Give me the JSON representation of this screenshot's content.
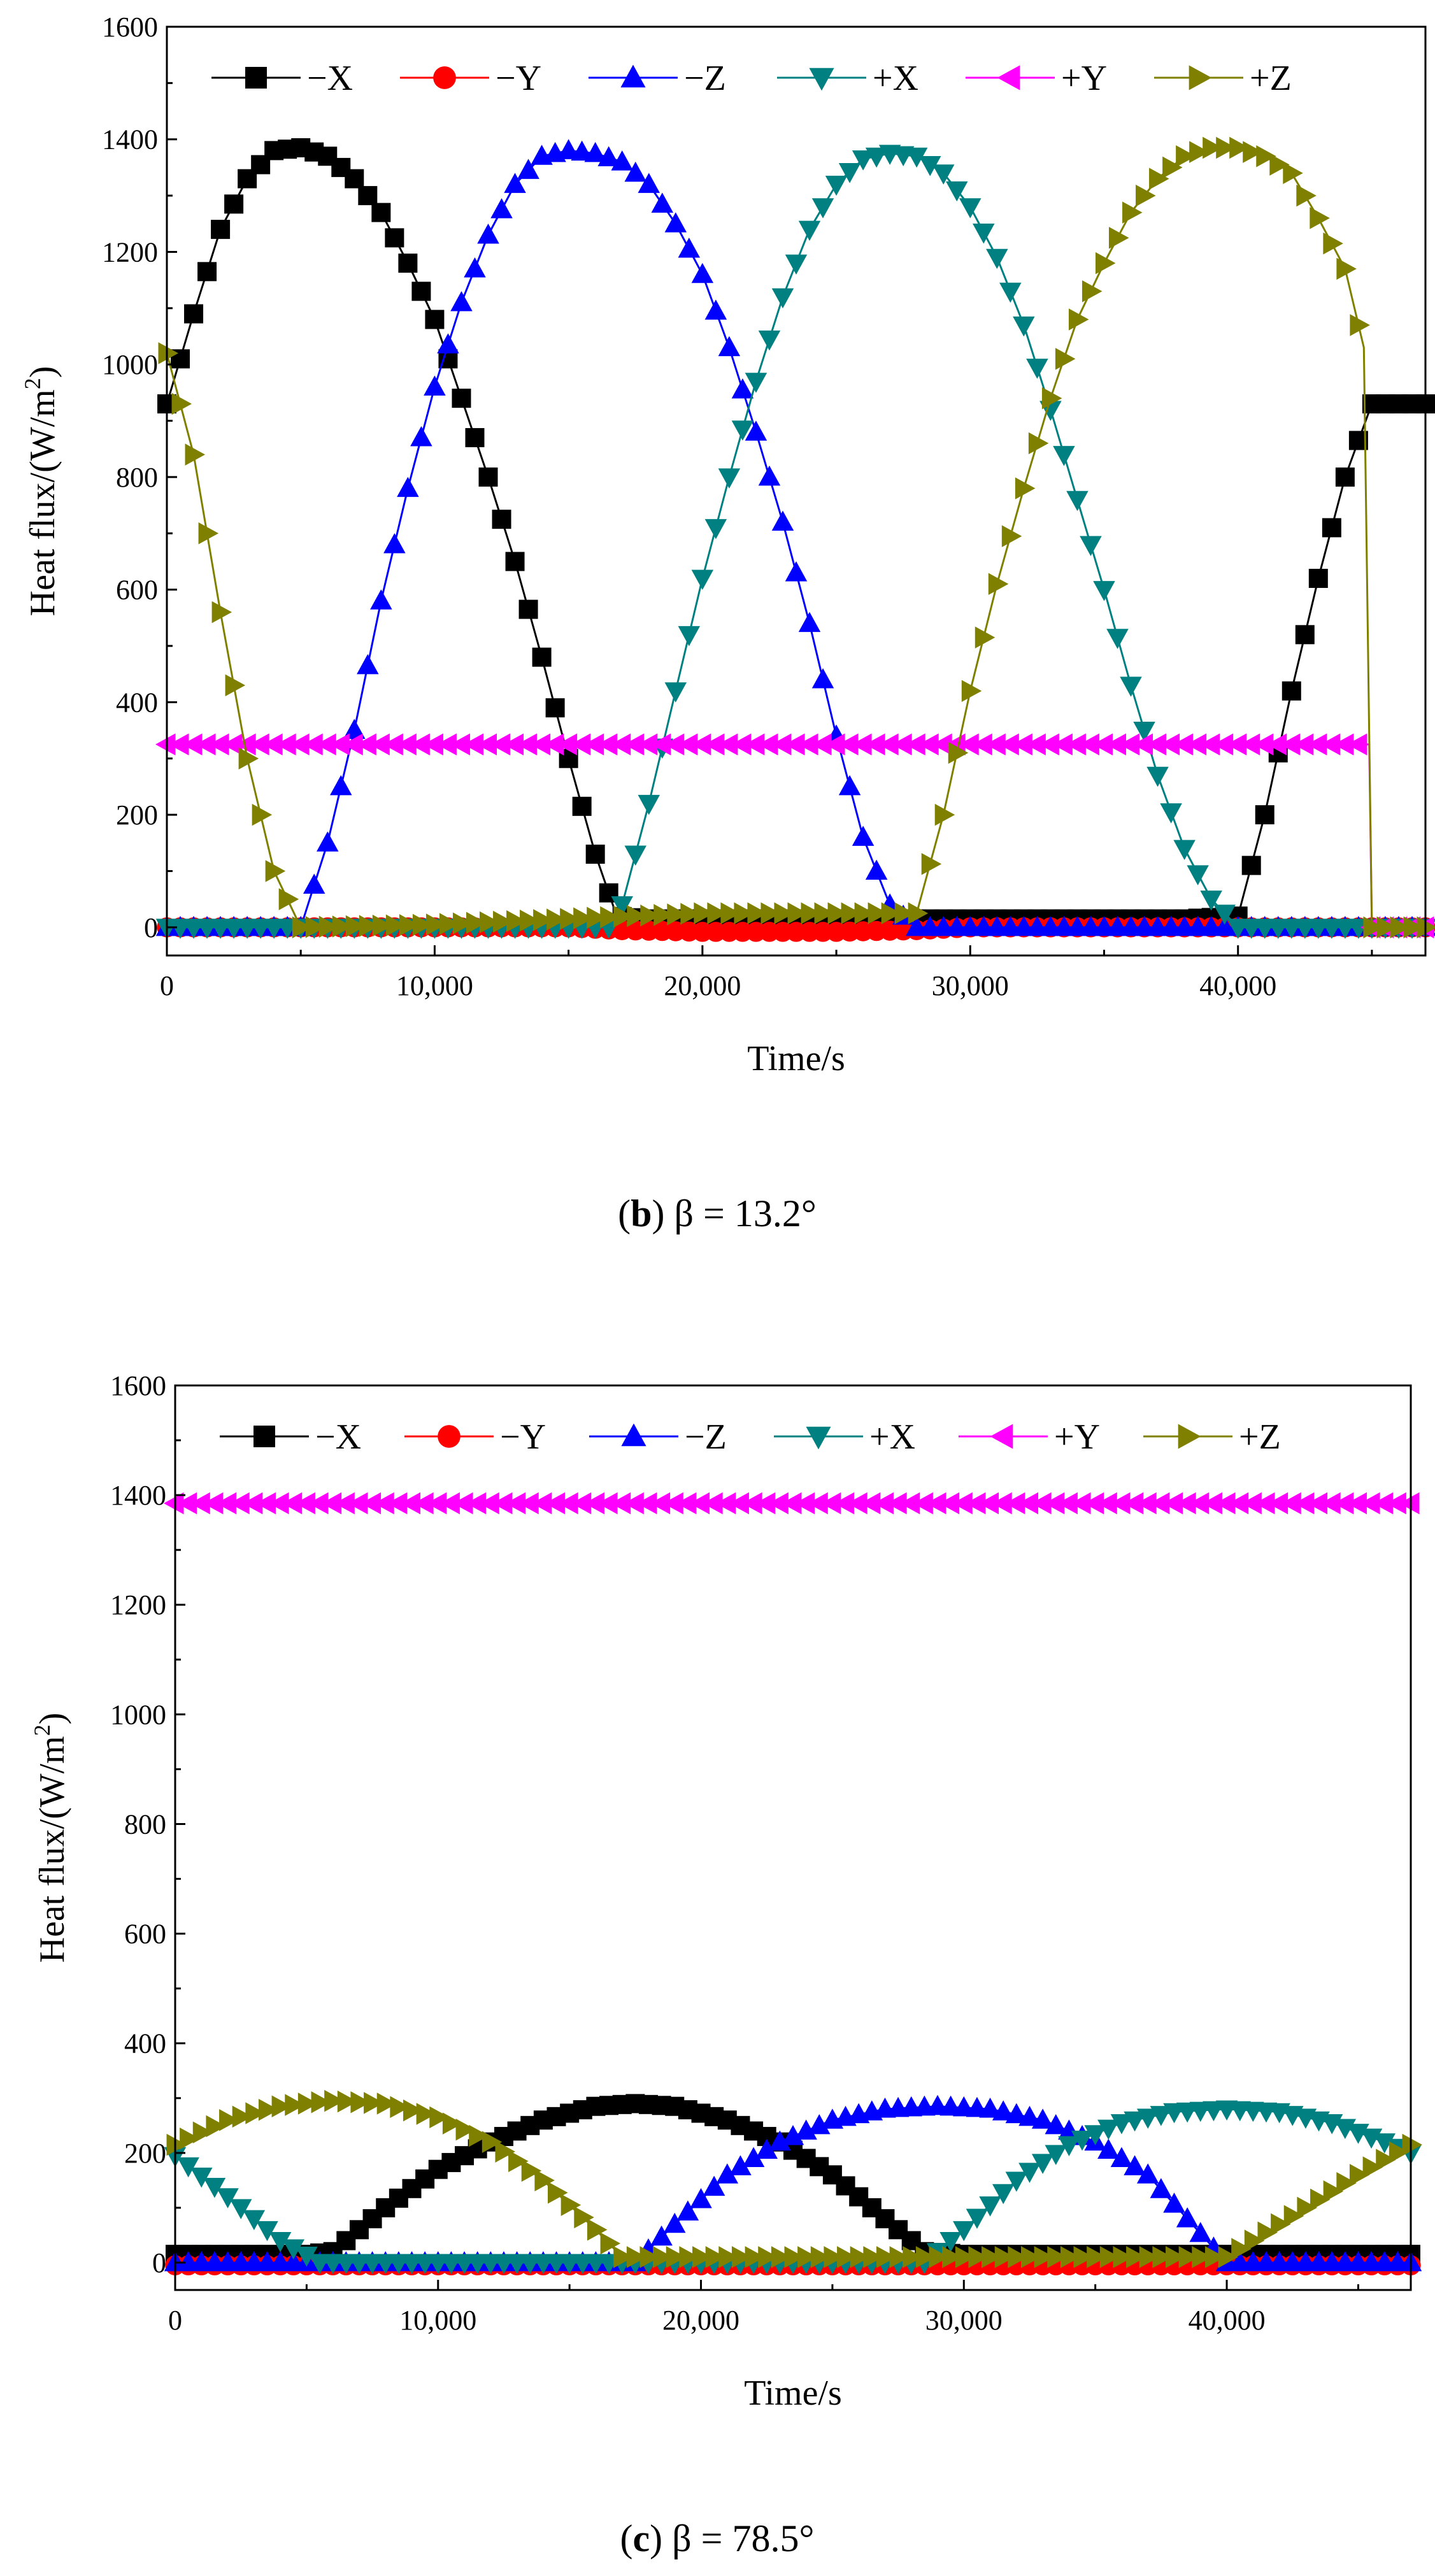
{
  "colors": {
    "-X": "#000000",
    "-Y": "#ff0000",
    "-Z": "#0000ff",
    "+X": "#008080",
    "+Y": "#ff00ff",
    "+Z": "#808000"
  },
  "chart_data": [
    {
      "type": "line",
      "xlabel": "Time/s",
      "ylabel_main": "Heat flux/(W/m",
      "ylabel_sup": "2",
      "ylabel_close": ")",
      "xlim": [
        0,
        47000
      ],
      "ylim": [
        -50,
        1600
      ],
      "xticks": [
        0,
        10000,
        20000,
        30000,
        40000
      ],
      "xtick_labels": [
        "0",
        "10,000",
        "20,000",
        "30,000",
        "40,000"
      ],
      "yticks": [
        0,
        200,
        400,
        600,
        800,
        1000,
        1200,
        1400,
        1600
      ],
      "ytick_labels": [
        "0",
        "200",
        "400",
        "600",
        "800",
        "1000",
        "1200",
        "1400",
        "1600"
      ],
      "legend_position": "top",
      "caption_letter": "b",
      "caption_text": " β = 13.2°",
      "series": [
        {
          "name": "−X",
          "key": "-X",
          "marker": "square",
          "x": [
            0,
            1000,
            2000,
            3000,
            4000,
            5000,
            6000,
            7000,
            8000,
            9000,
            10000,
            11000,
            12000,
            13000,
            14000,
            15000,
            16000,
            16800,
            18000,
            22000,
            26000,
            30000,
            34000,
            38000,
            40000,
            41000,
            42000,
            43000,
            44000,
            45000
          ],
          "y": [
            930,
            1090,
            1240,
            1330,
            1380,
            1385,
            1370,
            1330,
            1270,
            1180,
            1080,
            940,
            800,
            650,
            480,
            300,
            130,
            20,
            15,
            15,
            15,
            15,
            15,
            15,
            20,
            200,
            420,
            620,
            800,
            930
          ]
        },
        {
          "name": "−Y",
          "key": "-Y",
          "marker": "circle",
          "x": [
            0,
            5000,
            10000,
            15000,
            17000,
            20000,
            25000,
            28000,
            30000,
            35000,
            40000,
            45000,
            47000
          ],
          "y": [
            0,
            0,
            0,
            0,
            -5,
            -8,
            -8,
            -5,
            0,
            0,
            0,
            0,
            0
          ]
        },
        {
          "name": "−Z",
          "key": "-Z",
          "marker": "triangle-up",
          "x": [
            0,
            5000,
            6000,
            7000,
            8000,
            9000,
            10000,
            11000,
            12000,
            13000,
            14000,
            15000,
            16000,
            17000,
            18000,
            19000,
            20000,
            21000,
            22000,
            23000,
            24000,
            25000,
            26000,
            27000,
            28000,
            30000,
            35000,
            40000,
            45000,
            47000
          ],
          "y": [
            0,
            0,
            150,
            350,
            580,
            780,
            960,
            1110,
            1230,
            1320,
            1370,
            1380,
            1375,
            1360,
            1320,
            1250,
            1160,
            1030,
            880,
            720,
            540,
            340,
            160,
            40,
            0,
            0,
            0,
            0,
            0,
            0
          ]
        },
        {
          "name": "+X",
          "key": "+X",
          "marker": "triangle-down",
          "x": [
            0,
            5000,
            10000,
            15000,
            16500,
            17000,
            18000,
            19000,
            20000,
            21000,
            22000,
            23000,
            24000,
            25000,
            26000,
            27000,
            28000,
            29000,
            30000,
            31000,
            32000,
            33000,
            34000,
            35000,
            36000,
            37000,
            38000,
            39000,
            40000,
            45000,
            47000
          ],
          "y": [
            0,
            0,
            0,
            0,
            0,
            40,
            220,
            420,
            620,
            800,
            970,
            1120,
            1240,
            1320,
            1365,
            1375,
            1370,
            1340,
            1280,
            1190,
            1070,
            920,
            760,
            600,
            430,
            270,
            140,
            50,
            0,
            0,
            0
          ]
        },
        {
          "name": "+Y",
          "key": "+Y",
          "marker": "triangle-left",
          "x": [
            0,
            10000,
            20000,
            30000,
            40000,
            44900,
            45000,
            47000
          ],
          "y": [
            325,
            325,
            325,
            325,
            325,
            325,
            0,
            0
          ]
        },
        {
          "name": "+Z",
          "key": "+Z",
          "marker": "triangle-right",
          "x": [
            0,
            1000,
            2000,
            3000,
            4000,
            5000,
            10000,
            15000,
            20000,
            25000,
            28000,
            29000,
            30000,
            31000,
            32000,
            33000,
            34000,
            35000,
            36000,
            37000,
            38000,
            39000,
            40000,
            41000,
            42000,
            43000,
            44000,
            44700,
            45000,
            47000
          ],
          "y": [
            1020,
            840,
            560,
            300,
            100,
            0,
            5,
            15,
            25,
            25,
            25,
            200,
            420,
            610,
            780,
            940,
            1080,
            1180,
            1270,
            1330,
            1370,
            1385,
            1385,
            1370,
            1340,
            1260,
            1170,
            1030,
            0,
            0
          ]
        }
      ]
    },
    {
      "type": "line",
      "xlabel": "Time/s",
      "ylabel_main": "Heat flux/(W/m",
      "ylabel_sup": "2",
      "ylabel_close": ")",
      "xlim": [
        0,
        47000
      ],
      "ylim": [
        -50,
        1600
      ],
      "xticks": [
        0,
        10000,
        20000,
        30000,
        40000
      ],
      "xtick_labels": [
        "0",
        "10,000",
        "20,000",
        "30,000",
        "40,000"
      ],
      "yticks": [
        0,
        200,
        400,
        600,
        800,
        1000,
        1200,
        1400,
        1600
      ],
      "ytick_labels": [
        "0",
        "200",
        "400",
        "600",
        "800",
        "1000",
        "1200",
        "1400",
        "1600"
      ],
      "legend_position": "top",
      "caption_letter": "c",
      "caption_text": " β = 78.5°",
      "series": [
        {
          "name": "−X",
          "key": "-X",
          "marker": "square",
          "x": [
            0,
            5000,
            6000,
            8000,
            10000,
            12000,
            14000,
            16000,
            17500,
            19000,
            21000,
            23000,
            25000,
            27000,
            28500,
            30000,
            35000,
            40000,
            45000,
            47000
          ],
          "y": [
            15,
            15,
            20,
            100,
            170,
            220,
            260,
            285,
            290,
            285,
            260,
            220,
            160,
            80,
            20,
            15,
            15,
            15,
            15,
            15
          ]
        },
        {
          "name": "−Y",
          "key": "-Y",
          "marker": "circle",
          "x": [
            0,
            10000,
            20000,
            30000,
            40000,
            47000
          ],
          "y": [
            -5,
            -5,
            -5,
            -5,
            -5,
            -5
          ]
        },
        {
          "name": "−Z",
          "key": "-Z",
          "marker": "triangle-up",
          "x": [
            0,
            5000,
            10000,
            15000,
            17500,
            19000,
            21000,
            23000,
            25000,
            27000,
            29000,
            31000,
            33000,
            35000,
            37000,
            38500,
            40000,
            45000,
            47000
          ],
          "y": [
            0,
            0,
            0,
            0,
            0,
            70,
            160,
            220,
            260,
            280,
            285,
            280,
            260,
            220,
            160,
            80,
            0,
            0,
            0
          ]
        },
        {
          "name": "+X",
          "key": "+X",
          "marker": "triangle-down",
          "x": [
            0,
            2000,
            4000,
            5500,
            10000,
            15000,
            20000,
            25000,
            28500,
            30000,
            32000,
            34000,
            36000,
            38000,
            40000,
            42000,
            44000,
            46000,
            47000
          ],
          "y": [
            195,
            120,
            40,
            0,
            0,
            0,
            0,
            0,
            0,
            60,
            150,
            215,
            255,
            275,
            280,
            275,
            255,
            220,
            200
          ]
        },
        {
          "name": "+Y",
          "key": "+Y",
          "marker": "triangle-left",
          "x": [
            0,
            10000,
            20000,
            30000,
            40000,
            47000
          ],
          "y": [
            1385,
            1385,
            1385,
            1385,
            1385,
            1385
          ]
        },
        {
          "name": "+Z",
          "key": "+Z",
          "marker": "triangle-right",
          "x": [
            0,
            2000,
            4000,
            6000,
            8000,
            10000,
            12000,
            14000,
            16000,
            17000,
            20000,
            25000,
            30000,
            35000,
            40000,
            41000,
            43000,
            45000,
            47000
          ],
          "y": [
            215,
            260,
            285,
            295,
            290,
            265,
            220,
            150,
            60,
            10,
            10,
            10,
            10,
            10,
            10,
            40,
            100,
            160,
            215
          ]
        }
      ]
    }
  ]
}
